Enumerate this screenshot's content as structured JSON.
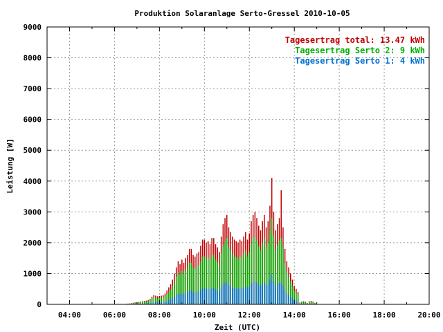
{
  "chart_data": {
    "type": "bar",
    "title": "Produktion Solaranlage Serto-Gressel 2010-10-05",
    "xlabel": "Zeit (UTC)",
    "ylabel": "Leistung [W]",
    "xlim": [
      3.0,
      20.0
    ],
    "ylim": [
      0,
      9000
    ],
    "xticks": [
      4,
      6,
      8,
      10,
      12,
      14,
      16,
      18,
      20
    ],
    "xtick_labels": [
      "04:00",
      "06:00",
      "08:00",
      "10:00",
      "12:00",
      "14:00",
      "16:00",
      "18:00",
      "20:00"
    ],
    "yticks": [
      0,
      1000,
      2000,
      3000,
      4000,
      5000,
      6000,
      7000,
      8000,
      9000
    ],
    "grid": true,
    "legend_position": "top-right",
    "legend": [
      {
        "label": "Tagesertrag total: 13.47 kWh",
        "color": "#c00000"
      },
      {
        "label": "Tagesertrag Serto 2: 9 kWh",
        "color": "#00b000"
      },
      {
        "label": "Tagesertrag Serto 1: 4 kWh",
        "color": "#0070d0"
      }
    ],
    "time_start": 6.5,
    "time_step": 0.08333,
    "series": [
      {
        "name": "total",
        "color": "#c00000",
        "values": [
          10,
          20,
          30,
          40,
          50,
          60,
          70,
          80,
          90,
          100,
          110,
          120,
          140,
          170,
          250,
          300,
          280,
          260,
          270,
          280,
          300,
          350,
          450,
          550,
          650,
          800,
          1000,
          1200,
          1400,
          1300,
          1450,
          1350,
          1500,
          1600,
          1800,
          1800,
          1600,
          1550,
          1650,
          1700,
          1900,
          2100,
          2100,
          2000,
          2050,
          1950,
          2150,
          2150,
          1950,
          1850,
          1700,
          2200,
          2600,
          2800,
          2900,
          2500,
          2350,
          2200,
          2100,
          2050,
          2000,
          2100,
          2050,
          2200,
          2350,
          2100,
          2300,
          2700,
          2900,
          3000,
          2800,
          2550,
          2400,
          2700,
          2900,
          2500,
          2700,
          3200,
          4100,
          3000,
          2400,
          2600,
          2800,
          3700,
          2500,
          1800,
          1400,
          1200,
          1000,
          800,
          600,
          500,
          400,
          60,
          90,
          100,
          80,
          40,
          100,
          110,
          90,
          40
        ]
      },
      {
        "name": "Serto 2",
        "color": "#00b000",
        "values": [
          8,
          15,
          22,
          30,
          38,
          45,
          52,
          60,
          68,
          75,
          82,
          90,
          105,
          128,
          190,
          230,
          210,
          195,
          205,
          210,
          225,
          260,
          330,
          410,
          480,
          600,
          750,
          900,
          1050,
          970,
          1080,
          1000,
          1100,
          1200,
          1350,
          1350,
          1200,
          1160,
          1230,
          1270,
          1400,
          1550,
          1560,
          1480,
          1520,
          1450,
          1600,
          1600,
          1450,
          1380,
          1270,
          1650,
          1900,
          2050,
          2150,
          1850,
          1740,
          1630,
          1550,
          1520,
          1480,
          1550,
          1510,
          1620,
          1740,
          1550,
          1700,
          2000,
          2150,
          2200,
          2070,
          1880,
          1770,
          2000,
          2150,
          1850,
          2000,
          2380,
          2800,
          2230,
          1780,
          1920,
          2070,
          2150,
          1850,
          1330,
          1040,
          890,
          740,
          590,
          450,
          370,
          300,
          45,
          70,
          75,
          60,
          30,
          75,
          80,
          65,
          30
        ]
      },
      {
        "name": "Serto 1",
        "color": "#0070d0",
        "values": [
          3,
          5,
          8,
          10,
          12,
          15,
          18,
          20,
          23,
          25,
          28,
          30,
          35,
          42,
          62,
          75,
          70,
          65,
          68,
          70,
          75,
          87,
          112,
          137,
          162,
          200,
          250,
          300,
          350,
          325,
          362,
          338,
          375,
          400,
          450,
          450,
          400,
          388,
          412,
          425,
          475,
          525,
          525,
          500,
          512,
          488,
          538,
          538,
          488,
          462,
          425,
          550,
          650,
          700,
          725,
          625,
          588,
          550,
          525,
          512,
          500,
          525,
          512,
          550,
          588,
          525,
          575,
          675,
          725,
          750,
          700,
          638,
          600,
          675,
          725,
          625,
          675,
          800,
          1000,
          750,
          600,
          650,
          700,
          700,
          625,
          450,
          350,
          300,
          250,
          200,
          150,
          125,
          100,
          15,
          22,
          25,
          20,
          10,
          25,
          28,
          22,
          10
        ]
      }
    ]
  }
}
